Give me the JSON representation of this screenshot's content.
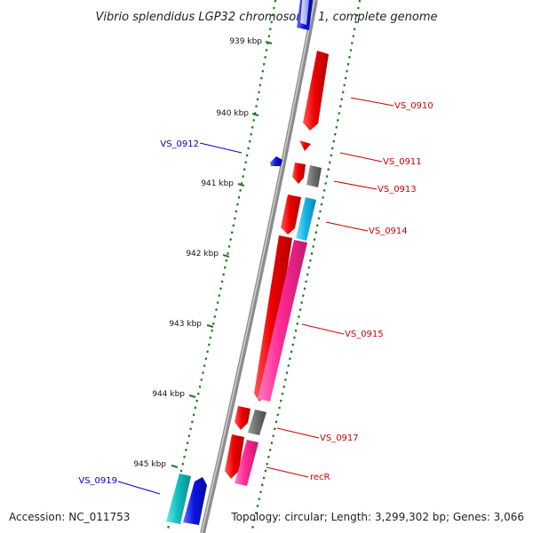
{
  "title": "Vibrio splendidus LGP32 chromosome 1, complete genome",
  "footer": {
    "accession": "Accession: NC_011753",
    "summary": "Topology: circular; Length: 3,299,302 bp; Genes: 3,066"
  },
  "scale_labels": [
    "939 kbp",
    "940 kbp",
    "941 kbp",
    "942 kbp",
    "943 kbp",
    "944 kbp",
    "945 kbp"
  ],
  "gene_labels": [
    {
      "text": "VS_0910",
      "color": "#cc0000"
    },
    {
      "text": "VS_0911",
      "color": "#cc0000"
    },
    {
      "text": "VS_0912",
      "color": "#0000cc"
    },
    {
      "text": "VS_0913",
      "color": "#cc0000"
    },
    {
      "text": "VS_0914",
      "color": "#cc0000"
    },
    {
      "text": "VS_0915",
      "color": "#cc0000"
    },
    {
      "text": "VS_0917",
      "color": "#cc0000"
    },
    {
      "text": "recR",
      "color": "#cc0000"
    },
    {
      "text": "VS_0919",
      "color": "#0000cc"
    }
  ],
  "colors": {
    "backbone": "#8c8c8c",
    "tick": "#1f7a1f",
    "red_gene": "#ee0000",
    "pink_gene": "#ff2a95",
    "gray_gene": "#707070",
    "cyan_gene": "#19b6e8",
    "teal_gene": "#12c0c0",
    "blue_gene": "#0d14e0"
  }
}
